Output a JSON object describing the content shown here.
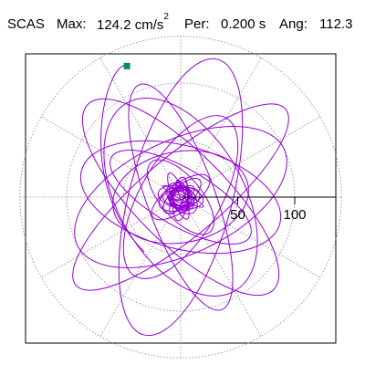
{
  "header": {
    "station": "SCAS",
    "max_label": "Max:",
    "max_value": "124.2 cm/s",
    "max_exp": "2",
    "per_label": "Per:",
    "per_value": "0.200 s",
    "ang_label": "Ang:",
    "ang_value": "112.3"
  },
  "chart_data": {
    "type": "polar-trace",
    "units": "cm/s^2",
    "max": 124.2,
    "period_s": 0.2,
    "angle_deg": 112.3,
    "radial_ticks": [
      50,
      100
    ],
    "tick_labels": [
      "50",
      "100"
    ],
    "ring_radii": [
      50,
      100,
      150
    ],
    "grid": "dotted",
    "orbit_series": {
      "color": "#9400D3",
      "ellipses": [
        {
          "cx": 0,
          "cy": 0,
          "rx": 120,
          "ry": 35,
          "rot": -40
        },
        {
          "cx": 0,
          "cy": 0,
          "rx": 115,
          "ry": 40,
          "rot": 45
        },
        {
          "cx": 0,
          "cy": 0,
          "rx": 100,
          "ry": 50,
          "rot": -25
        },
        {
          "cx": 0,
          "cy": 0,
          "rx": 105,
          "ry": 30,
          "rot": 70
        },
        {
          "cx": 0,
          "cy": 0,
          "rx": 90,
          "ry": 45,
          "rot": 15
        },
        {
          "cx": 0,
          "cy": 0,
          "rx": 80,
          "ry": 35,
          "rot": -60
        },
        {
          "cx": 0,
          "cy": 0,
          "rx": 70,
          "ry": 25,
          "rot": 30
        },
        {
          "cx": 0,
          "cy": 0,
          "rx": 60,
          "ry": 40,
          "rot": -10
        },
        {
          "cx": 0,
          "cy": 0,
          "rx": 40,
          "ry": 18,
          "rot": 50
        },
        {
          "cx": 0,
          "cy": 0,
          "rx": 30,
          "ry": 12,
          "rot": -35
        },
        {
          "cx": 0,
          "cy": 0,
          "rx": 20,
          "ry": 10,
          "rot": 10
        },
        {
          "cx": 0,
          "cy": 0,
          "rx": 14,
          "ry": 7,
          "rot": 80
        },
        {
          "cx": 0,
          "cy": 0,
          "rx": 10,
          "ry": 6,
          "rot": -70
        },
        {
          "cx": 0,
          "cy": 0,
          "rx": 125,
          "ry": 45,
          "rot": 105
        },
        {
          "cx": 0,
          "cy": 0,
          "rx": 95,
          "ry": 55,
          "rot": 60
        }
      ]
    },
    "peak_point": {
      "r": 124.2,
      "angle_deg": 112.3,
      "color": "#008B6E"
    }
  }
}
